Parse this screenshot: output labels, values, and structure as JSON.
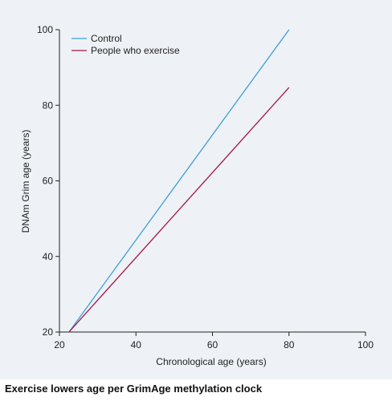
{
  "caption": "Exercise lowers age per GrimAge methylation clock",
  "colors": {
    "panel_background": "#eef1f5",
    "control": "#3d9fd6",
    "exercise": "#a3174a"
  },
  "chart_data": {
    "type": "line",
    "xlabel": "Chronological age (years)",
    "ylabel": "DNAm Grim age (years)",
    "xlim": [
      20,
      100
    ],
    "ylim": [
      20,
      100
    ],
    "xticks": [
      20,
      40,
      60,
      80,
      100
    ],
    "yticks": [
      20,
      40,
      60,
      80,
      100
    ],
    "grid": false,
    "legend_position": "top-left",
    "series": [
      {
        "name": "Control",
        "color": "#3d9fd6",
        "points": [
          [
            22.5,
            20
          ],
          [
            80,
            100
          ]
        ]
      },
      {
        "name": "People who exercise",
        "color": "#a3174a",
        "points": [
          [
            22.5,
            20
          ],
          [
            80,
            84.7
          ]
        ]
      }
    ]
  }
}
